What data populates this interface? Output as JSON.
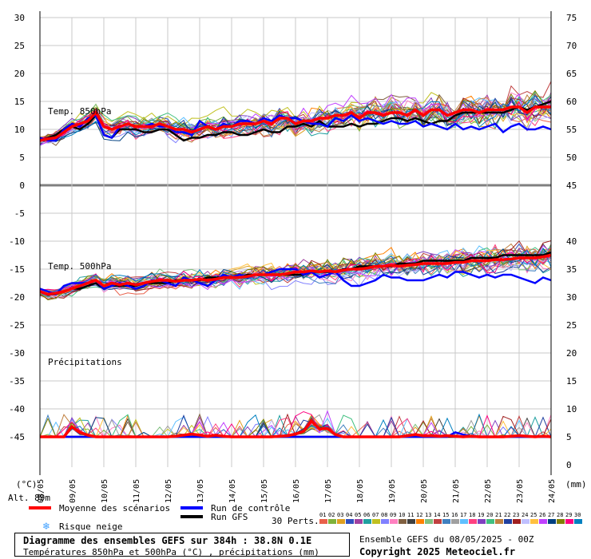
{
  "chart_data": {
    "type": "line",
    "title": "Diagramme des ensembles GEFS sur 384h : 38.8N 0.1E",
    "subtitle": "Températures 850hPa et 500hPa (°C) , précipitations (mm)",
    "left_axis": {
      "unit": "(°C)",
      "range": [
        -45,
        30
      ],
      "ticks": [
        30,
        25,
        20,
        15,
        10,
        5,
        0,
        -5,
        -10,
        -15,
        -20,
        -25,
        -30,
        -35,
        -40,
        -45
      ]
    },
    "right_axis": {
      "unit": "(mm)",
      "ticks_upper": [
        75,
        70,
        65,
        60,
        55,
        50,
        45
      ],
      "ticks_lower": [
        40,
        35,
        30,
        25,
        20,
        15,
        10,
        5,
        0
      ]
    },
    "x_ticks": [
      "08/05",
      "09/05",
      "10/05",
      "11/05",
      "12/05",
      "13/05",
      "14/05",
      "15/05",
      "16/05",
      "17/05",
      "18/05",
      "19/05",
      "20/05",
      "21/05",
      "22/05",
      "23/05",
      "24/05"
    ],
    "altitude_label": "Alt. 89m",
    "panels": [
      {
        "name": "Temp. 850hPa"
      },
      {
        "name": "Temp. 500hPa"
      },
      {
        "name": "Précipitations"
      }
    ],
    "series": [
      {
        "name": "Moyenne des scénarios",
        "color": "#ff0000",
        "t850": [
          8,
          8.3,
          8.5,
          9.5,
          10.5,
          11,
          11.5,
          13,
          10.5,
          10,
          10.5,
          11,
          10.5,
          10.5,
          10.5,
          11,
          10.5,
          10,
          10,
          9.5,
          10,
          10.5,
          10,
          10.5,
          10.5,
          11,
          11,
          11,
          11.5,
          11,
          12,
          12,
          11,
          11.5,
          11.5,
          12,
          12,
          12.5,
          12.5,
          13,
          12,
          13,
          13,
          12.5,
          13,
          13,
          12.5,
          13.5,
          12.5,
          13.5,
          13.5,
          12.5,
          13,
          13.5,
          13.5,
          13,
          13.5,
          13.5,
          13.5,
          14,
          14,
          13,
          14,
          14,
          14
        ],
        "t500": [
          -19,
          -19.5,
          -19.3,
          -19,
          -18.5,
          -18,
          -17.5,
          -17,
          -18,
          -17.5,
          -17.8,
          -17.5,
          -17.8,
          -17.5,
          -17.2,
          -17,
          -17,
          -17.2,
          -17,
          -17,
          -16.8,
          -17,
          -16.8,
          -16.5,
          -16.5,
          -16.5,
          -16.3,
          -16,
          -16,
          -16,
          -16,
          -15.8,
          -15.5,
          -15.5,
          -15.3,
          -15.5,
          -15.3,
          -15.5,
          -15.2,
          -15,
          -15,
          -14.8,
          -14.5,
          -14.5,
          -14.3,
          -14.5,
          -14.3,
          -14.2,
          -14,
          -14,
          -14,
          -14,
          -13.8,
          -13.8,
          -13.5,
          -13.5,
          -13.5,
          -13.3,
          -13.3,
          -13.2,
          -13,
          -13,
          -13,
          -12.8,
          -12.5
        ],
        "precip": [
          0,
          0,
          0,
          0,
          1.8,
          0.8,
          0.3,
          0,
          0,
          0,
          0,
          0,
          0,
          0,
          0,
          0,
          0,
          0.1,
          0.3,
          0.5,
          0.3,
          0.1,
          0.3,
          0.1,
          0,
          0,
          0,
          0,
          0,
          0,
          0.1,
          0.2,
          0.5,
          1,
          2.8,
          1.4,
          1.5,
          0.4,
          0,
          0,
          0,
          0,
          0,
          0,
          0,
          0,
          0.2,
          0.4,
          0.2,
          0.2,
          0.1,
          0.2,
          0.1,
          0,
          0.1,
          0,
          0,
          0,
          0,
          0.1,
          0.2,
          0.1,
          0,
          0.1,
          0
        ]
      },
      {
        "name": "Run de contrôle",
        "color": "#0000ff",
        "t850": [
          8.5,
          8,
          8,
          10,
          11,
          10.5,
          12,
          12.5,
          9,
          8.5,
          10.5,
          11,
          10.5,
          10.5,
          11,
          10.5,
          10.5,
          9.5,
          9.5,
          9,
          11.5,
          10.5,
          10,
          11,
          10.5,
          11.5,
          11.5,
          11,
          12,
          11.5,
          12.5,
          12,
          12,
          11.5,
          11,
          11,
          10.5,
          12,
          11.5,
          12.5,
          11.5,
          12,
          11.5,
          11,
          11.5,
          11,
          11,
          11.5,
          10.5,
          11,
          10.5,
          10,
          11,
          10,
          10.5,
          10,
          10.5,
          11,
          9.5,
          10.5,
          11,
          10,
          10,
          10.5,
          10
        ],
        "t500": [
          -18.5,
          -19,
          -19.5,
          -18,
          -17.5,
          -17.5,
          -17.5,
          -17,
          -18.5,
          -18,
          -17.5,
          -18,
          -18.5,
          -18,
          -17,
          -17,
          -17.5,
          -18,
          -16.5,
          -17,
          -17.5,
          -18,
          -17,
          -16,
          -16.5,
          -16,
          -16.5,
          -16,
          -16,
          -15.5,
          -15,
          -15,
          -15,
          -16,
          -15.5,
          -16.5,
          -16,
          -15.5,
          -17,
          -18,
          -18,
          -17.5,
          -17,
          -16,
          -16.5,
          -16.5,
          -17,
          -17,
          -17,
          -16.5,
          -16,
          -16.5,
          -15.5,
          -15.5,
          -16,
          -16.5,
          -16,
          -16.5,
          -16,
          -16,
          -16.5,
          -17,
          -17.5,
          -16.5,
          -17
        ],
        "precip": [
          0,
          0,
          0,
          0,
          0,
          0,
          0,
          0,
          0,
          0,
          0,
          0,
          0,
          0,
          0,
          0,
          0,
          0,
          0,
          0,
          0,
          0,
          0,
          0,
          0,
          0,
          0,
          0,
          0,
          0,
          0,
          0,
          0,
          0,
          0,
          0,
          0,
          0,
          0,
          0,
          0,
          0,
          0,
          0,
          0,
          0,
          0,
          0,
          0,
          0,
          0,
          0,
          0.8,
          0.4,
          0,
          0,
          0,
          0,
          0,
          0,
          0,
          0,
          0,
          0,
          0
        ]
      },
      {
        "name": "Run GFS",
        "color": "#000000",
        "t850": [
          8,
          8.5,
          9,
          10,
          10.5,
          10,
          11,
          12.5,
          9,
          8.5,
          10,
          10,
          10,
          9.5,
          9.5,
          10,
          10,
          9,
          8,
          8.5,
          8.5,
          9,
          9,
          9.5,
          9.5,
          9,
          9,
          9.5,
          10,
          9.5,
          9.5,
          10.5,
          10.5,
          11,
          10.5,
          11.5,
          10.5,
          10.5,
          10.5,
          11,
          10.5,
          11,
          11,
          11.5,
          12,
          12,
          11.5,
          12,
          11.5,
          11,
          11.5,
          11.5,
          12.5,
          13,
          13,
          13,
          13,
          13,
          13,
          13.5,
          14,
          13.5,
          14,
          14.5,
          15
        ],
        "t500": [
          -19,
          -19.5,
          -19.5,
          -19,
          -18.5,
          -18.5,
          -18,
          -17.5,
          -18.5,
          -18,
          -18,
          -18,
          -18,
          -17.5,
          -17.5,
          -17.5,
          -17.5,
          -17,
          -17,
          -17,
          -17,
          -16.5,
          -16.5,
          -16.5,
          -16.5,
          -16.5,
          -16,
          -16,
          -16,
          -16,
          -16,
          -16,
          -16,
          -16,
          -15.5,
          -15.5,
          -15.5,
          -15.5,
          -15,
          -15,
          -14.5,
          -14.5,
          -14.5,
          -14.5,
          -14.5,
          -14,
          -14,
          -14,
          -13.5,
          -13.5,
          -13.5,
          -13.5,
          -13.5,
          -13.5,
          -13,
          -13,
          -13,
          -13,
          -12.5,
          -12.5,
          -12.5,
          -12.5,
          -12.5,
          -12.5,
          -12
        ],
        "precip": [
          0,
          0,
          0,
          0,
          0,
          0,
          0,
          0,
          0,
          0,
          0,
          0,
          0,
          0,
          0,
          0,
          0,
          0,
          0,
          0,
          0,
          0,
          0,
          0,
          0,
          0,
          0,
          0,
          0,
          0,
          0,
          0,
          0,
          0,
          0,
          0,
          0,
          0,
          0,
          0,
          0,
          0,
          0,
          0,
          0,
          0,
          0,
          0,
          0,
          0,
          0,
          0,
          0,
          0,
          0,
          0,
          0,
          0,
          0,
          0,
          0,
          0,
          0,
          0,
          0
        ]
      }
    ],
    "members": {
      "count_label": "30 Perts.",
      "labels": [
        "01",
        "02",
        "03",
        "04",
        "05",
        "06",
        "07",
        "08",
        "09",
        "10",
        "11",
        "12",
        "13",
        "14",
        "15",
        "16",
        "17",
        "18",
        "19",
        "20",
        "21",
        "22",
        "23",
        "24",
        "25",
        "26",
        "27",
        "28",
        "29",
        "30"
      ],
      "colors": [
        "#e8604a",
        "#7fb23a",
        "#e0a020",
        "#3050c0",
        "#a040a0",
        "#20a0a0",
        "#c0c020",
        "#8080ff",
        "#ff80c0",
        "#806040",
        "#404040",
        "#ff8000",
        "#80c080",
        "#c04040",
        "#4080c0",
        "#a0a0a0",
        "#60c0ff",
        "#ff4080",
        "#8040c0",
        "#40c080",
        "#c08040",
        "#2040a0",
        "#a02020",
        "#c0c0ff",
        "#ffc040",
        "#c040ff",
        "#004080",
        "#808000",
        "#ff0080",
        "#0080c0"
      ]
    }
  },
  "legend": {
    "mean": "Moyenne des scénarios",
    "control": "Run de contrôle",
    "gfs": "Run GFS",
    "snow_risk": "Risque neige"
  },
  "footer": {
    "title": "Diagramme des ensembles GEFS sur 384h : 38.8N 0.1E",
    "subtitle": "Températures 850hPa et 500hPa (°C) , précipitations (mm)",
    "ensemble_run": "Ensemble GEFS du 08/05/2025 - 00Z",
    "copyright": "Copyright 2025 Meteociel.fr"
  }
}
